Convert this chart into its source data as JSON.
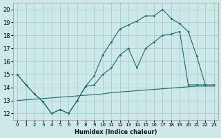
{
  "xlabel": "Humidex (Indice chaleur)",
  "bg_color": "#cce8e8",
  "grid_color": "#aacccc",
  "line_color": "#1a6b6b",
  "xlim": [
    -0.5,
    23.5
  ],
  "ylim": [
    11.5,
    20.5
  ],
  "xticks": [
    0,
    1,
    2,
    3,
    4,
    5,
    6,
    7,
    8,
    9,
    10,
    11,
    12,
    13,
    14,
    15,
    16,
    17,
    18,
    19,
    20,
    21,
    22,
    23
  ],
  "yticks": [
    12,
    13,
    14,
    15,
    16,
    17,
    18,
    19,
    20
  ],
  "line1_x": [
    0,
    1,
    2,
    3,
    4,
    5,
    6,
    7,
    8,
    9,
    10,
    11,
    12,
    13,
    14,
    15,
    16,
    17,
    18,
    19,
    20,
    21,
    22,
    23
  ],
  "line1_y": [
    15,
    14.2,
    13.5,
    12.9,
    12.0,
    12.3,
    12.0,
    13.0,
    14.1,
    14.2,
    15.0,
    15.5,
    16.5,
    17.0,
    15.5,
    17.0,
    17.5,
    18.0,
    18.1,
    18.3,
    14.2,
    14.2,
    14.2,
    14.2
  ],
  "line2_x": [
    0,
    1,
    2,
    3,
    4,
    5,
    6,
    7,
    8,
    9,
    10,
    11,
    12,
    13,
    14,
    15,
    16,
    17,
    18,
    19,
    20,
    21,
    22,
    23
  ],
  "line2_y": [
    15,
    14.2,
    13.5,
    12.9,
    12.0,
    12.3,
    12.0,
    13.0,
    14.1,
    14.9,
    16.5,
    17.5,
    18.5,
    18.8,
    19.1,
    19.5,
    19.5,
    20.0,
    19.3,
    18.9,
    18.3,
    16.4,
    14.2,
    null
  ],
  "line3_x": [
    0,
    1,
    2,
    3,
    4,
    5,
    6,
    7,
    8,
    9,
    10,
    11,
    12,
    13,
    14,
    15,
    16,
    17,
    18,
    19,
    20,
    21,
    22,
    23
  ],
  "line3_y": [
    13.0,
    13.05,
    13.1,
    13.15,
    13.2,
    13.25,
    13.3,
    13.35,
    13.4,
    13.45,
    13.5,
    13.6,
    13.65,
    13.7,
    13.75,
    13.8,
    13.85,
    13.9,
    13.95,
    14.0,
    14.05,
    14.1,
    14.1,
    14.1
  ]
}
